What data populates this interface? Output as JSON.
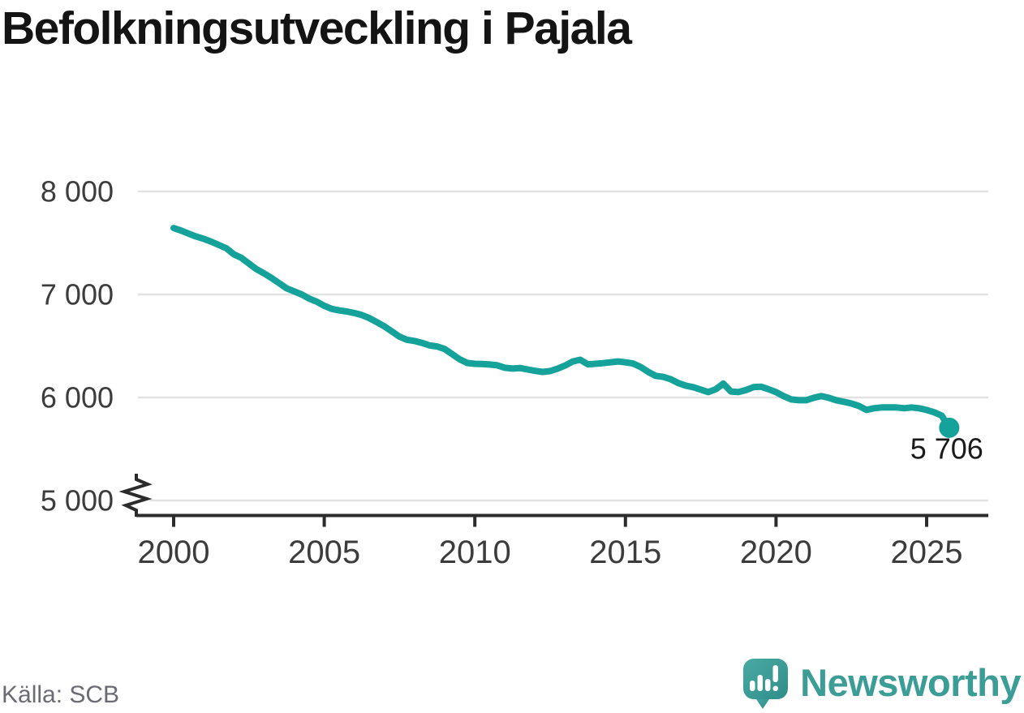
{
  "title": "Befolkningsutveckling i Pajala",
  "source": "Källa: SCB",
  "branding": {
    "name": "Newsworthy",
    "icon": "newsworthy-chart-bubble-icon"
  },
  "colors": {
    "line": "#14a29a",
    "grid": "#e2e2e2",
    "axis": "#2b2b2b",
    "tick_label": "#3c3c3c",
    "title": "#141414",
    "source": "#6b6b74",
    "logo_text": "#3c9d96",
    "logo_icon_light": "#49a9a3",
    "logo_icon_dark": "#2f8e89",
    "end_label": "#1a1a1a"
  },
  "chart_data": {
    "type": "line",
    "title": "Befolkningsutveckling i Pajala",
    "xlabel": "",
    "ylabel": "",
    "grid": true,
    "legend": "none",
    "axis_break_at_bottom": true,
    "xlim": [
      2000,
      2027
    ],
    "ylim": [
      5000,
      8000
    ],
    "x_start": 2000,
    "x_step": 0.25,
    "x_end": 2025.75,
    "values": [
      7645,
      7620,
      7590,
      7562,
      7540,
      7512,
      7480,
      7448,
      7390,
      7355,
      7300,
      7245,
      7205,
      7160,
      7110,
      7060,
      7030,
      7000,
      6960,
      6930,
      6890,
      6860,
      6845,
      6835,
      6820,
      6800,
      6770,
      6730,
      6690,
      6640,
      6590,
      6560,
      6548,
      6530,
      6505,
      6495,
      6470,
      6420,
      6370,
      6335,
      6327,
      6325,
      6320,
      6312,
      6288,
      6280,
      6286,
      6272,
      6258,
      6248,
      6256,
      6280,
      6310,
      6350,
      6366,
      6322,
      6327,
      6333,
      6341,
      6350,
      6341,
      6330,
      6296,
      6250,
      6210,
      6200,
      6178,
      6140,
      6115,
      6100,
      6076,
      6052,
      6080,
      6135,
      6058,
      6052,
      6072,
      6100,
      6105,
      6080,
      6052,
      6013,
      5981,
      5973,
      5973,
      5997,
      6013,
      5997,
      5973,
      5958,
      5942,
      5918,
      5879,
      5895,
      5903,
      5903,
      5903,
      5895,
      5903,
      5895,
      5879,
      5856,
      5824,
      5706
    ],
    "end_point": {
      "x": 2025.75,
      "value": 5706,
      "label": "5 706"
    },
    "y_ticks": [
      {
        "value": 8000,
        "label": "8 000"
      },
      {
        "value": 7000,
        "label": "7 000"
      },
      {
        "value": 6000,
        "label": "6 000"
      },
      {
        "value": 5000,
        "label": "5 000"
      }
    ],
    "x_ticks": [
      {
        "value": 2000,
        "label": "2000"
      },
      {
        "value": 2005,
        "label": "2005"
      },
      {
        "value": 2010,
        "label": "2010"
      },
      {
        "value": 2015,
        "label": "2015"
      },
      {
        "value": 2020,
        "label": "2020"
      },
      {
        "value": 2025,
        "label": "2025"
      }
    ]
  }
}
